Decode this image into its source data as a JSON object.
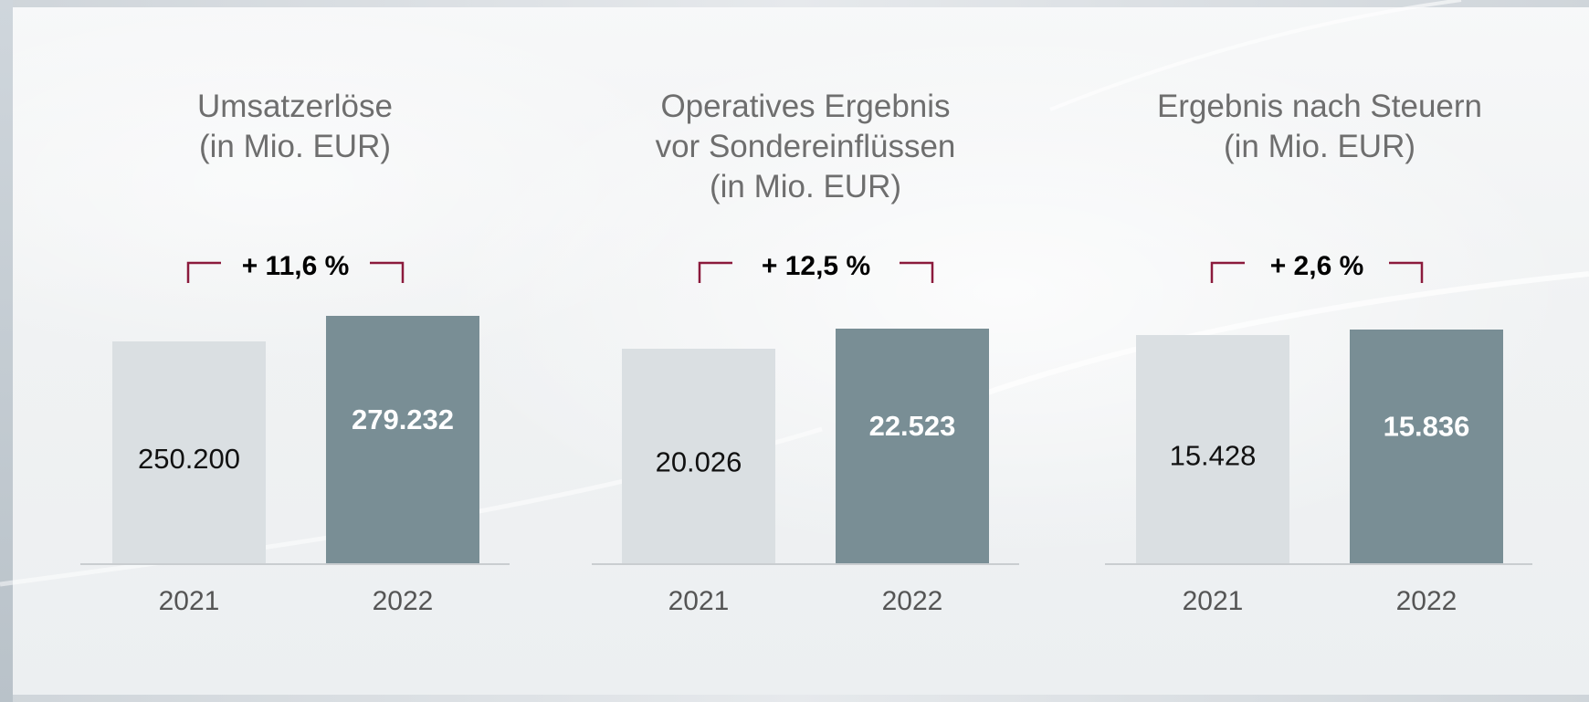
{
  "chart_data": [
    {
      "type": "bar",
      "title_lines": [
        "Umsatzerlöse",
        "(in Mio. EUR)"
      ],
      "categories": [
        "2021",
        "2022"
      ],
      "values": [
        250200,
        279232
      ],
      "value_labels": [
        "250.200",
        "279.232"
      ],
      "growth_label": "+ 11,6 %"
    },
    {
      "type": "bar",
      "title_lines": [
        "Operatives Ergebnis",
        "vor Sondereinflüssen",
        "(in Mio. EUR)"
      ],
      "categories": [
        "2021",
        "2022"
      ],
      "values": [
        20026,
        22523
      ],
      "value_labels": [
        "20.026",
        "22.523"
      ],
      "growth_label": "+ 12,5 %"
    },
    {
      "type": "bar",
      "title_lines": [
        "Ergebnis nach Steuern",
        "(in Mio. EUR)"
      ],
      "categories": [
        "2021",
        "2022"
      ],
      "values": [
        15428,
        15836
      ],
      "value_labels": [
        "15.428",
        "15.836"
      ],
      "growth_label": "+ 2,6 %"
    }
  ],
  "colors": {
    "bar_previous_year": "#dadfe2",
    "bar_current_year": "#798e95",
    "bracket": "#8b1a3c",
    "baseline": "#c9cdd0"
  }
}
